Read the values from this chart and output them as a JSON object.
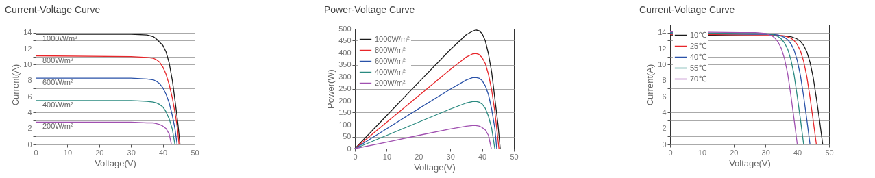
{
  "chart_data": [
    {
      "type": "line",
      "title": "Current-Voltage Curve",
      "xlabel": "Voltage(V)",
      "ylabel": "Current(A)",
      "xlim": [
        0,
        50
      ],
      "xticks": [
        0,
        10,
        20,
        30,
        40,
        50
      ],
      "ylim": [
        0,
        15
      ],
      "yticks": [
        0,
        {
          "value": 1,
          "label": null
        },
        2,
        {
          "value": 3,
          "label": null
        },
        4,
        {
          "value": 5,
          "label": null
        },
        6,
        {
          "value": 7,
          "label": null
        },
        8,
        {
          "value": 9,
          "label": null
        },
        10,
        {
          "value": 11,
          "label": null
        },
        12,
        {
          "value": 13,
          "label": null
        },
        14
      ],
      "grid": "y",
      "legend": false,
      "marker": "none",
      "line_style": "solid",
      "series": [
        {
          "name": "1000W/m²",
          "color": "#1a1a1a",
          "x": [
            0,
            30,
            35,
            37,
            38,
            39,
            40,
            41,
            42,
            43,
            44,
            44.8,
            45.4
          ],
          "values": [
            13.8,
            13.8,
            13.7,
            13.5,
            13.2,
            12.8,
            12.4,
            11.6,
            10.2,
            8.0,
            5.0,
            2.4,
            0
          ]
        },
        {
          "name": "800W/m²",
          "color": "#e8262a",
          "x": [
            0,
            30,
            35,
            37,
            38,
            39,
            40,
            41,
            42,
            43,
            44,
            44.6,
            45.1
          ],
          "values": [
            11.1,
            11.0,
            10.9,
            10.8,
            10.6,
            10.3,
            9.7,
            8.8,
            7.5,
            5.8,
            3.6,
            2.0,
            0
          ]
        },
        {
          "name": "600W/m²",
          "color": "#2a52a8",
          "x": [
            0,
            30,
            35,
            37,
            38,
            39,
            40,
            41,
            42,
            43,
            43.8,
            44.5
          ],
          "values": [
            8.3,
            8.3,
            8.2,
            8.1,
            7.9,
            7.6,
            7.1,
            6.3,
            5.2,
            3.6,
            2.0,
            0
          ]
        },
        {
          "name": "400W/m²",
          "color": "#2a8a80",
          "x": [
            0,
            30,
            35,
            37,
            38,
            39,
            40,
            41,
            42,
            43,
            43.8
          ],
          "values": [
            5.5,
            5.5,
            5.4,
            5.3,
            5.2,
            5.0,
            4.7,
            4.1,
            3.2,
            1.9,
            0
          ]
        },
        {
          "name": "200W/m²",
          "color": "#a050b0",
          "x": [
            0,
            30,
            35,
            37,
            38,
            39,
            40,
            41,
            42,
            42.7
          ],
          "values": [
            2.8,
            2.8,
            2.7,
            2.7,
            2.6,
            2.5,
            2.3,
            2.0,
            1.3,
            0
          ]
        }
      ]
    },
    {
      "type": "line",
      "title": "Power-Voltage Curve",
      "xlabel": "Voltage(V)",
      "ylabel": "Power(W)",
      "xlim": [
        0,
        50
      ],
      "xticks": [
        0,
        10,
        20,
        30,
        40,
        50
      ],
      "ylim": [
        0,
        500
      ],
      "yticks": [
        0,
        50,
        100,
        150,
        200,
        250,
        300,
        350,
        400,
        450,
        500
      ],
      "grid": "y",
      "legend": "top left",
      "marker": "none",
      "line_style": "solid",
      "series": [
        {
          "name": "1000W/m²",
          "color": "#1a1a1a",
          "x": [
            0,
            10,
            20,
            30,
            35,
            37,
            38,
            39,
            40,
            41,
            42,
            43,
            44,
            45,
            45.7
          ],
          "values": [
            0,
            138,
            276,
            413,
            475,
            490,
            495,
            492,
            480,
            450,
            395,
            320,
            210,
            100,
            0
          ]
        },
        {
          "name": "800W/m²",
          "color": "#e8262a",
          "x": [
            0,
            10,
            20,
            30,
            35,
            37,
            38,
            39,
            40,
            41,
            42,
            43,
            44,
            45.3
          ],
          "values": [
            0,
            110,
            220,
            330,
            382,
            395,
            397,
            393,
            380,
            355,
            310,
            245,
            155,
            0
          ]
        },
        {
          "name": "600W/m²",
          "color": "#2a52a8",
          "x": [
            0,
            10,
            20,
            30,
            35,
            37,
            38,
            39,
            40,
            41,
            42,
            43,
            44,
            44.6
          ],
          "values": [
            0,
            83,
            166,
            248,
            286,
            296,
            297,
            294,
            284,
            262,
            225,
            165,
            85,
            0
          ]
        },
        {
          "name": "400W/m²",
          "color": "#2a8a80",
          "x": [
            0,
            10,
            20,
            30,
            35,
            37,
            38,
            39,
            40,
            41,
            42,
            43,
            44
          ],
          "values": [
            0,
            55,
            110,
            165,
            190,
            196,
            197,
            194,
            186,
            168,
            135,
            85,
            0
          ]
        },
        {
          "name": "200W/m²",
          "color": "#a050b0",
          "x": [
            0,
            10,
            20,
            30,
            35,
            37,
            38,
            39,
            40,
            41,
            42,
            42.9
          ],
          "values": [
            0,
            27,
            55,
            82,
            93,
            96,
            96,
            94,
            88,
            78,
            55,
            0
          ]
        }
      ]
    },
    {
      "type": "line",
      "title": "Current-Voltage Curve",
      "xlabel": "Voltage(V)",
      "ylabel": "Current(A)",
      "xlim": [
        0,
        50
      ],
      "xticks": [
        0,
        10,
        20,
        30,
        40,
        50
      ],
      "ylim": [
        0,
        15
      ],
      "yticks": [
        0,
        {
          "value": 1,
          "label": null
        },
        2,
        {
          "value": 3,
          "label": null
        },
        4,
        {
          "value": 5,
          "label": null
        },
        6,
        {
          "value": 7,
          "label": null
        },
        8,
        {
          "value": 9,
          "label": null
        },
        10,
        {
          "value": 11,
          "label": null
        },
        12,
        {
          "value": 13,
          "label": null
        },
        14
      ],
      "grid": "y",
      "legend": "top left",
      "marker": "none",
      "line_style": "solid",
      "series": [
        {
          "name": "10℃",
          "color": "#1a1a1a",
          "x": [
            0,
            30,
            35,
            38,
            40,
            41,
            42,
            43,
            44,
            45,
            46,
            47,
            48
          ],
          "values": [
            13.7,
            13.6,
            13.6,
            13.5,
            13.2,
            12.9,
            12.4,
            11.6,
            10.3,
            8.4,
            5.8,
            3.0,
            0
          ]
        },
        {
          "name": "25℃",
          "color": "#e8262a",
          "x": [
            0,
            28,
            33,
            36,
            38,
            39,
            40,
            41,
            42,
            43,
            44,
            45,
            46
          ],
          "values": [
            13.8,
            13.7,
            13.7,
            13.6,
            13.3,
            13.0,
            12.5,
            11.7,
            10.4,
            8.5,
            5.9,
            3.0,
            0
          ]
        },
        {
          "name": "40℃",
          "color": "#2a52a8",
          "x": [
            0,
            26,
            31,
            34,
            36,
            37,
            38,
            39,
            40,
            41,
            42,
            43,
            44
          ],
          "values": [
            13.9,
            13.8,
            13.8,
            13.7,
            13.4,
            13.1,
            12.6,
            11.8,
            10.5,
            8.6,
            6.0,
            3.1,
            0
          ]
        },
        {
          "name": "55℃",
          "color": "#2a8a80",
          "x": [
            0,
            24,
            29,
            32,
            34,
            35,
            36,
            37,
            38,
            39,
            40,
            41,
            42
          ],
          "values": [
            14.0,
            13.9,
            13.9,
            13.8,
            13.5,
            13.2,
            12.7,
            11.9,
            10.6,
            8.7,
            6.0,
            3.1,
            0
          ]
        },
        {
          "name": "70℃",
          "color": "#a050b0",
          "x": [
            0,
            22,
            27,
            30,
            32,
            33,
            34,
            35,
            36,
            37,
            38,
            39,
            40
          ],
          "values": [
            14.1,
            14.0,
            14.0,
            13.9,
            13.6,
            13.3,
            12.8,
            12.0,
            10.7,
            8.8,
            6.1,
            3.1,
            0
          ]
        }
      ]
    }
  ]
}
